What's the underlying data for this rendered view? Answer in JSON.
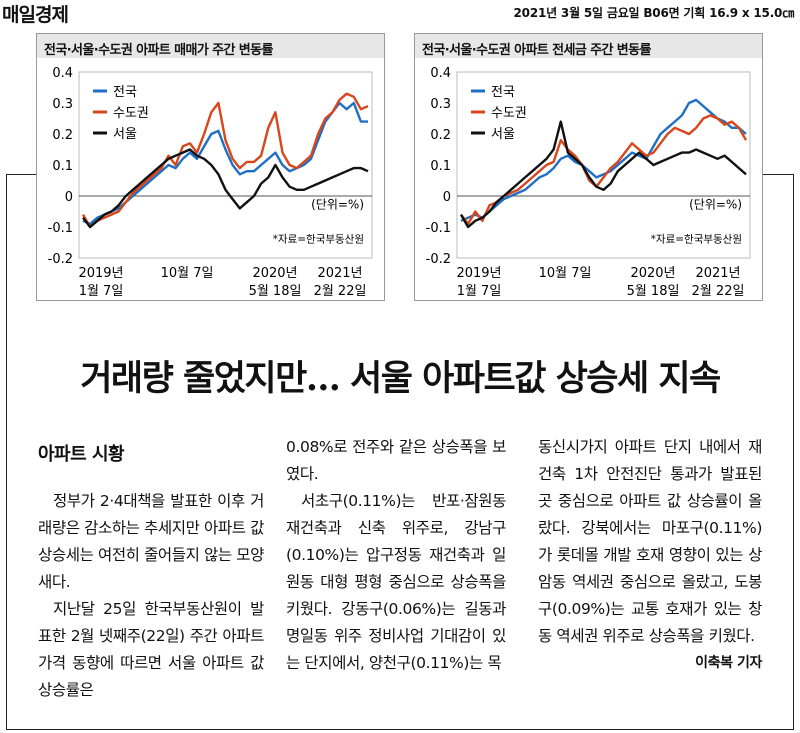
{
  "header": {
    "masthead": "매일경제",
    "pubinfo": "2021년 3월 5일 금요일 B06면 기획 16.9 x 15.0㎝"
  },
  "charts": [
    {
      "title": "전국·서울·수도권 아파트 매매가 주간 변동률",
      "unit_note": "(단위=%)",
      "source_note": "*자료=한국부동산원",
      "legend": [
        "전국",
        "수도권",
        "서울"
      ],
      "y_ticks": [
        "0.4",
        "0.3",
        "0.2",
        "0.1",
        "0",
        "-0.1",
        "-0.2"
      ],
      "x_ticks": [
        {
          "line1": "2019년",
          "line2": "1월 7일"
        },
        {
          "line1": "10월 7일",
          "line2": ""
        },
        {
          "line1": "2020년",
          "line2": "5월 18일"
        },
        {
          "line1": "2021년",
          "line2": "2월 22일"
        }
      ]
    },
    {
      "title": "전국·서울·수도권 아파트 전세금 주간 변동률",
      "unit_note": "(단위=%)",
      "source_note": "*자료=한국부동산원",
      "legend": [
        "전국",
        "수도권",
        "서울"
      ],
      "y_ticks": [
        "0.4",
        "0.3",
        "0.2",
        "0.1",
        "0",
        "-0.1",
        "-0.2"
      ],
      "x_ticks": [
        {
          "line1": "2019년",
          "line2": "1월 7일"
        },
        {
          "line1": "10월 7일",
          "line2": ""
        },
        {
          "line1": "2020년",
          "line2": "5월 18일"
        },
        {
          "line1": "2021년",
          "line2": "2월 22일"
        }
      ]
    }
  ],
  "chart_data": [
    {
      "type": "line",
      "title": "전국·서울·수도권 아파트 매매가 주간 변동률",
      "ylabel": "(단위=%)",
      "ylim": [
        -0.2,
        0.4
      ],
      "x_labels": [
        "2019년 1월 7일",
        "10월 7일",
        "2020년 5월 18일",
        "2021년 2월 22일"
      ],
      "series": [
        {
          "name": "전국",
          "color": "#1f6fc6",
          "values": [
            -0.08,
            -0.09,
            -0.07,
            -0.06,
            -0.05,
            -0.04,
            -0.02,
            0.0,
            0.02,
            0.04,
            0.06,
            0.08,
            0.1,
            0.09,
            0.12,
            0.14,
            0.12,
            0.16,
            0.2,
            0.21,
            0.15,
            0.1,
            0.07,
            0.08,
            0.08,
            0.1,
            0.12,
            0.14,
            0.1,
            0.08,
            0.09,
            0.1,
            0.12,
            0.18,
            0.24,
            0.27,
            0.3,
            0.28,
            0.3,
            0.24,
            0.24
          ]
        },
        {
          "name": "수도권",
          "color": "#d9461b",
          "values": [
            -0.06,
            -0.1,
            -0.08,
            -0.07,
            -0.06,
            -0.05,
            -0.02,
            0.01,
            0.03,
            0.05,
            0.07,
            0.09,
            0.13,
            0.1,
            0.16,
            0.17,
            0.14,
            0.2,
            0.27,
            0.3,
            0.18,
            0.12,
            0.09,
            0.11,
            0.11,
            0.13,
            0.22,
            0.27,
            0.14,
            0.1,
            0.09,
            0.11,
            0.13,
            0.2,
            0.25,
            0.27,
            0.31,
            0.33,
            0.32,
            0.28,
            0.29
          ]
        },
        {
          "name": "서울",
          "color": "#111111",
          "values": [
            -0.07,
            -0.1,
            -0.08,
            -0.06,
            -0.05,
            -0.03,
            0.0,
            0.02,
            0.04,
            0.06,
            0.08,
            0.1,
            0.12,
            0.13,
            0.14,
            0.15,
            0.13,
            0.12,
            0.1,
            0.07,
            0.02,
            -0.01,
            -0.04,
            -0.02,
            0.0,
            0.04,
            0.06,
            0.1,
            0.06,
            0.03,
            0.02,
            0.02,
            0.03,
            0.04,
            0.05,
            0.06,
            0.07,
            0.08,
            0.09,
            0.09,
            0.08
          ]
        }
      ]
    },
    {
      "type": "line",
      "title": "전국·서울·수도권 아파트 전세금 주간 변동률",
      "ylabel": "(단위=%)",
      "ylim": [
        -0.2,
        0.4
      ],
      "x_labels": [
        "2019년 1월 7일",
        "10월 7일",
        "2020년 5월 18일",
        "2021년 2월 22일"
      ],
      "series": [
        {
          "name": "전국",
          "color": "#1f6fc6",
          "values": [
            -0.08,
            -0.07,
            -0.06,
            -0.07,
            -0.05,
            -0.03,
            -0.01,
            0.0,
            0.01,
            0.02,
            0.04,
            0.06,
            0.07,
            0.09,
            0.12,
            0.13,
            0.11,
            0.1,
            0.08,
            0.06,
            0.07,
            0.08,
            0.1,
            0.12,
            0.14,
            0.13,
            0.12,
            0.16,
            0.2,
            0.22,
            0.24,
            0.26,
            0.3,
            0.31,
            0.29,
            0.27,
            0.25,
            0.24,
            0.22,
            0.22,
            0.2
          ]
        },
        {
          "name": "수도권",
          "color": "#d9461b",
          "values": [
            -0.06,
            -0.09,
            -0.05,
            -0.08,
            -0.03,
            -0.02,
            0.0,
            0.01,
            0.02,
            0.04,
            0.06,
            0.08,
            0.1,
            0.11,
            0.18,
            0.15,
            0.13,
            0.1,
            0.05,
            0.03,
            0.06,
            0.09,
            0.11,
            0.14,
            0.17,
            0.15,
            0.13,
            0.14,
            0.17,
            0.2,
            0.22,
            0.21,
            0.2,
            0.22,
            0.25,
            0.26,
            0.25,
            0.23,
            0.24,
            0.22,
            0.18
          ]
        },
        {
          "name": "서울",
          "color": "#111111",
          "values": [
            -0.06,
            -0.1,
            -0.08,
            -0.07,
            -0.05,
            -0.02,
            0.0,
            0.02,
            0.04,
            0.06,
            0.08,
            0.1,
            0.12,
            0.15,
            0.24,
            0.14,
            0.12,
            0.1,
            0.06,
            0.03,
            0.02,
            0.04,
            0.08,
            0.1,
            0.12,
            0.14,
            0.12,
            0.1,
            0.11,
            0.12,
            0.13,
            0.14,
            0.14,
            0.15,
            0.14,
            0.13,
            0.12,
            0.13,
            0.11,
            0.09,
            0.07
          ]
        }
      ]
    }
  ],
  "article": {
    "headline": "거래량 줄었지만… 서울 아파트값 상승세 지속",
    "section": "아파트 시황",
    "col1": [
      {
        "indent": true,
        "text": "정부가 2·4대책을 발표한 이후 거래량은 감소하는 추세지만 아파트 값 상승세는 여전히 줄어들지 않는 모양새다."
      },
      {
        "indent": true,
        "text": "지난달 25일 한국부동산원이 발표한 2월 넷째주(22일) 주간 아파트 가격 동향에 따르면 서울 아파트 값 상승률은"
      }
    ],
    "col2": [
      {
        "indent": false,
        "text": "0.08%로 전주와 같은 상승폭을 보였다."
      },
      {
        "indent": true,
        "text": "서초구(0.11%)는 반포·잠원동 재건축과 신축 위주로, 강남구(0.10%)는 압구정동 재건축과 일원동 대형 평형 중심으로 상승폭을 키웠다. 강동구(0.06%)는 길동과 명일동 위주 정비사업 기대감이 있는 단지에서, 양천구(0.11%)는 목"
      }
    ],
    "col3": [
      {
        "indent": false,
        "text": "동신시가지 아파트 단지 내에서 재건축 1차 안전진단 통과가 발표된 곳 중심으로 아파트 값 상승률이 올랐다. 강북에서는 마포구(0.11%)가 롯데몰 개발 호재 영향이 있는 상암동 역세권 중심으로 올랐고, 도봉구(0.09%)는 교통 호재가 있는 창동 역세권 위주로 상승폭을 키웠다."
      }
    ],
    "byline": "이축복 기자"
  }
}
